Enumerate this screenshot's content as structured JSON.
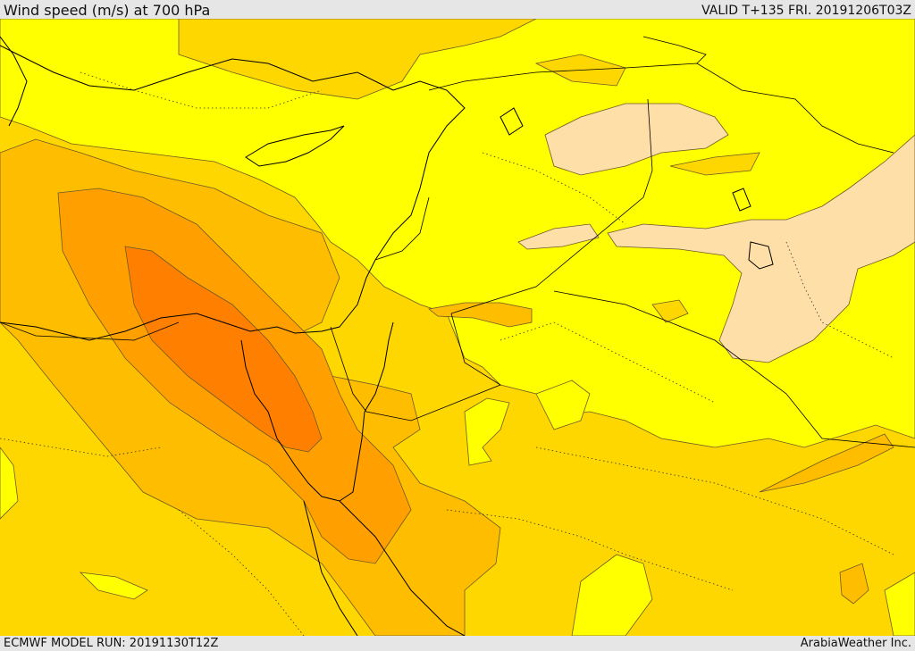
{
  "header": {
    "title": "Wind speed (m/s) at 700 hPa",
    "valid": "VALID T+135 FRI. 20191206T03Z"
  },
  "footer": {
    "model_run": "ECMWF MODEL RUN: 20191130T12Z",
    "credit": "ArabiaWeather Inc."
  },
  "colors": {
    "band_low": "#ffff00",
    "band_lowest": "#ffdfa8",
    "band_mid": "#ffd700",
    "band_high": "#ffbd00",
    "band_higher": "#ffa000",
    "band_max": "#ff7f00",
    "coast": "#000000",
    "contour": "#6b5a2a"
  }
}
